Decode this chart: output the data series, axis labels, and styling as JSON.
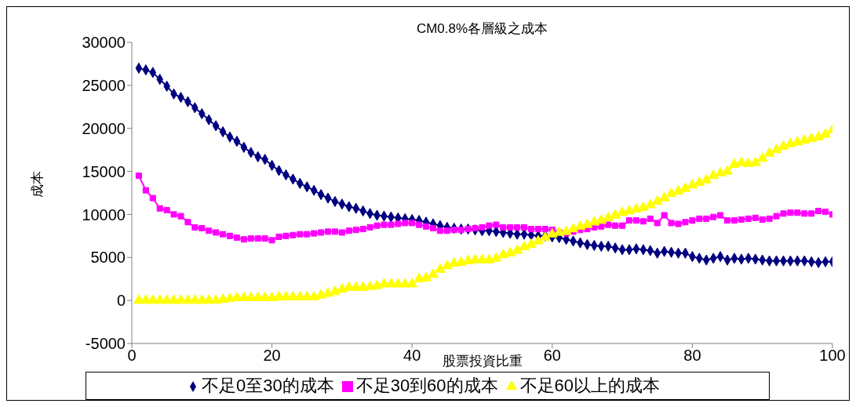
{
  "chart_data": {
    "type": "line",
    "title": "CM0.8%各層級之成本",
    "xlabel": "股票投資比重",
    "ylabel": "成本",
    "x": [
      1,
      2,
      3,
      4,
      5,
      6,
      7,
      8,
      9,
      10,
      11,
      12,
      13,
      14,
      15,
      16,
      17,
      18,
      19,
      20,
      21,
      22,
      23,
      24,
      25,
      26,
      27,
      28,
      29,
      30,
      31,
      32,
      33,
      34,
      35,
      36,
      37,
      38,
      39,
      40,
      41,
      42,
      43,
      44,
      45,
      46,
      47,
      48,
      49,
      50,
      51,
      52,
      53,
      54,
      55,
      56,
      57,
      58,
      59,
      60,
      61,
      62,
      63,
      64,
      65,
      66,
      67,
      68,
      69,
      70,
      71,
      72,
      73,
      74,
      75,
      76,
      77,
      78,
      79,
      80,
      81,
      82,
      83,
      84,
      85,
      86,
      87,
      88,
      89,
      90,
      91,
      92,
      93,
      94,
      95,
      96,
      97,
      98,
      99,
      100
    ],
    "xlim": [
      0,
      100
    ],
    "xticks": [
      0,
      20,
      40,
      60,
      80,
      100
    ],
    "ylim": [
      -5000,
      30000
    ],
    "yticks": [
      -5000,
      0,
      5000,
      10000,
      15000,
      20000,
      25000,
      30000
    ],
    "legend": "bottom",
    "series": [
      {
        "name": "不足0至30的成本",
        "color": "#000080",
        "marker": "diamond",
        "values": [
          27000,
          26800,
          26500,
          25700,
          24900,
          24000,
          23600,
          23100,
          22400,
          21700,
          21000,
          20300,
          19600,
          19000,
          18500,
          17800,
          17200,
          16700,
          16400,
          15700,
          15100,
          14600,
          14100,
          13600,
          13200,
          12800,
          12300,
          11900,
          11500,
          11200,
          10900,
          10700,
          10400,
          10100,
          9900,
          9800,
          9700,
          9600,
          9500,
          9400,
          9300,
          9100,
          8900,
          8700,
          8500,
          8400,
          8300,
          8300,
          8200,
          8100,
          8100,
          8000,
          7900,
          7800,
          7700,
          7700,
          7600,
          7500,
          7500,
          7400,
          7300,
          7100,
          6900,
          6700,
          6500,
          6400,
          6300,
          6300,
          6100,
          5900,
          5900,
          6000,
          5900,
          5800,
          5500,
          5700,
          5600,
          5500,
          5500,
          5100,
          4900,
          4700,
          4900,
          5100,
          4700,
          4900,
          4800,
          4900,
          4800,
          4700,
          4600,
          4600,
          4600,
          4600,
          4600,
          4600,
          4500,
          4400,
          4500,
          4500
        ]
      },
      {
        "name": "不足30到60的成本",
        "color": "#ff00ff",
        "marker": "square",
        "values": [
          14500,
          12800,
          11900,
          10700,
          10500,
          10000,
          9800,
          9100,
          8500,
          8400,
          8100,
          7900,
          7700,
          7500,
          7300,
          7100,
          7200,
          7200,
          7200,
          7000,
          7400,
          7500,
          7600,
          7700,
          7700,
          7800,
          7900,
          8000,
          8000,
          7900,
          8100,
          8200,
          8300,
          8500,
          8700,
          8800,
          8800,
          8900,
          9000,
          9000,
          8800,
          8600,
          8400,
          8100,
          8100,
          8200,
          8200,
          8300,
          8400,
          8500,
          8700,
          8800,
          8500,
          8500,
          8500,
          8500,
          8300,
          8300,
          8300,
          8200,
          7900,
          7800,
          8000,
          8200,
          8300,
          8500,
          8600,
          8800,
          8700,
          8700,
          9300,
          9300,
          9200,
          9500,
          9000,
          9900,
          9000,
          8900,
          9100,
          9300,
          9500,
          9500,
          9700,
          9900,
          9300,
          9300,
          9400,
          9500,
          9600,
          9400,
          9500,
          9800,
          10100,
          10200,
          10200,
          10100,
          10100,
          10400,
          10300,
          10000
        ]
      },
      {
        "name": "不足60以上的成本",
        "color": "#ffff00",
        "marker": "triangle",
        "values": [
          0,
          0,
          0,
          0,
          0,
          0,
          0,
          0,
          0,
          0,
          0,
          0,
          100,
          200,
          300,
          300,
          300,
          300,
          300,
          300,
          400,
          400,
          400,
          400,
          400,
          400,
          600,
          800,
          1000,
          1300,
          1500,
          1500,
          1500,
          1600,
          1700,
          1900,
          1900,
          1900,
          1900,
          1900,
          2500,
          2600,
          3000,
          3600,
          4000,
          4300,
          4400,
          4600,
          4700,
          4700,
          4700,
          4900,
          5300,
          5500,
          5800,
          6200,
          6500,
          6900,
          7300,
          7700,
          7900,
          8000,
          8300,
          8600,
          8800,
          9100,
          9300,
          9600,
          9900,
          10200,
          10400,
          10600,
          10800,
          11100,
          11500,
          11900,
          12400,
          12700,
          13000,
          13400,
          13700,
          14000,
          14500,
          14800,
          15000,
          15800,
          16000,
          15900,
          16000,
          16500,
          17100,
          17500,
          17900,
          18200,
          18400,
          18600,
          18800,
          19000,
          19300,
          19800
        ]
      }
    ]
  }
}
